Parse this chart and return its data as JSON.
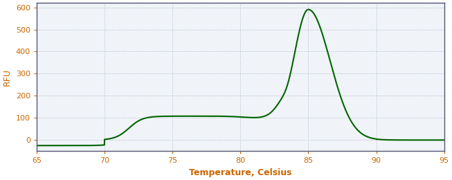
{
  "title": "",
  "xlabel": "Temperature, Celsius",
  "ylabel": "RFU",
  "xlim": [
    65,
    95
  ],
  "ylim": [
    -50,
    620
  ],
  "xticks": [
    65,
    70,
    75,
    80,
    85,
    90,
    95
  ],
  "yticks": [
    0,
    100,
    200,
    300,
    400,
    500,
    600
  ],
  "line_color": "#006400",
  "line_width": 1.5,
  "background_color": "#ffffff",
  "plot_bg_color": "#f0f4f8",
  "grid_color": "#b0b8c8",
  "grid_linestyle": ":",
  "axis_label_color": "#cc6600",
  "tick_label_color": "#cc6600",
  "xlabel_fontsize": 9,
  "ylabel_fontsize": 9,
  "tick_fontsize": 8,
  "spine_color": "#555577"
}
